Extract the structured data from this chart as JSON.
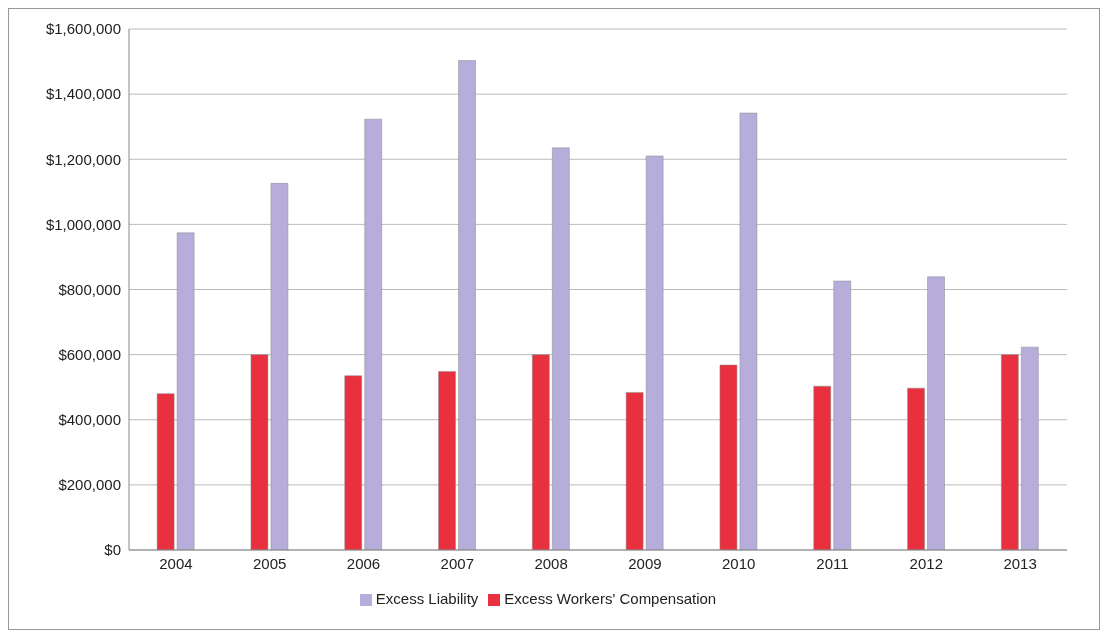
{
  "chart_data": {
    "type": "bar",
    "categories": [
      "2004",
      "2005",
      "2006",
      "2007",
      "2008",
      "2009",
      "2010",
      "2011",
      "2012",
      "2013"
    ],
    "series": [
      {
        "name": "Excess Workers' Compensation",
        "color": "#e8303f",
        "values": [
          480000,
          600000,
          535000,
          548000,
          600000,
          484000,
          568000,
          503000,
          497000,
          600000
        ]
      },
      {
        "name": "Excess Liability",
        "color": "#b7addb",
        "values": [
          974000,
          1126000,
          1323000,
          1503000,
          1235000,
          1210000,
          1342000,
          826000,
          839000,
          623000
        ]
      }
    ],
    "ylim": [
      0,
      1600000
    ],
    "yticks": [
      {
        "value": 0,
        "label": "$0"
      },
      {
        "value": 200000,
        "label": "$200,000"
      },
      {
        "value": 400000,
        "label": "$400,000"
      },
      {
        "value": 600000,
        "label": "$600,000"
      },
      {
        "value": 800000,
        "label": "$800,000"
      },
      {
        "value": 1000000,
        "label": "$1,000,000"
      },
      {
        "value": 1200000,
        "label": "$1,200,000"
      },
      {
        "value": 1400000,
        "label": "$1,400,000"
      },
      {
        "value": 1600000,
        "label": "$1,600,000"
      }
    ],
    "grid": "y",
    "legend": "bottom"
  }
}
